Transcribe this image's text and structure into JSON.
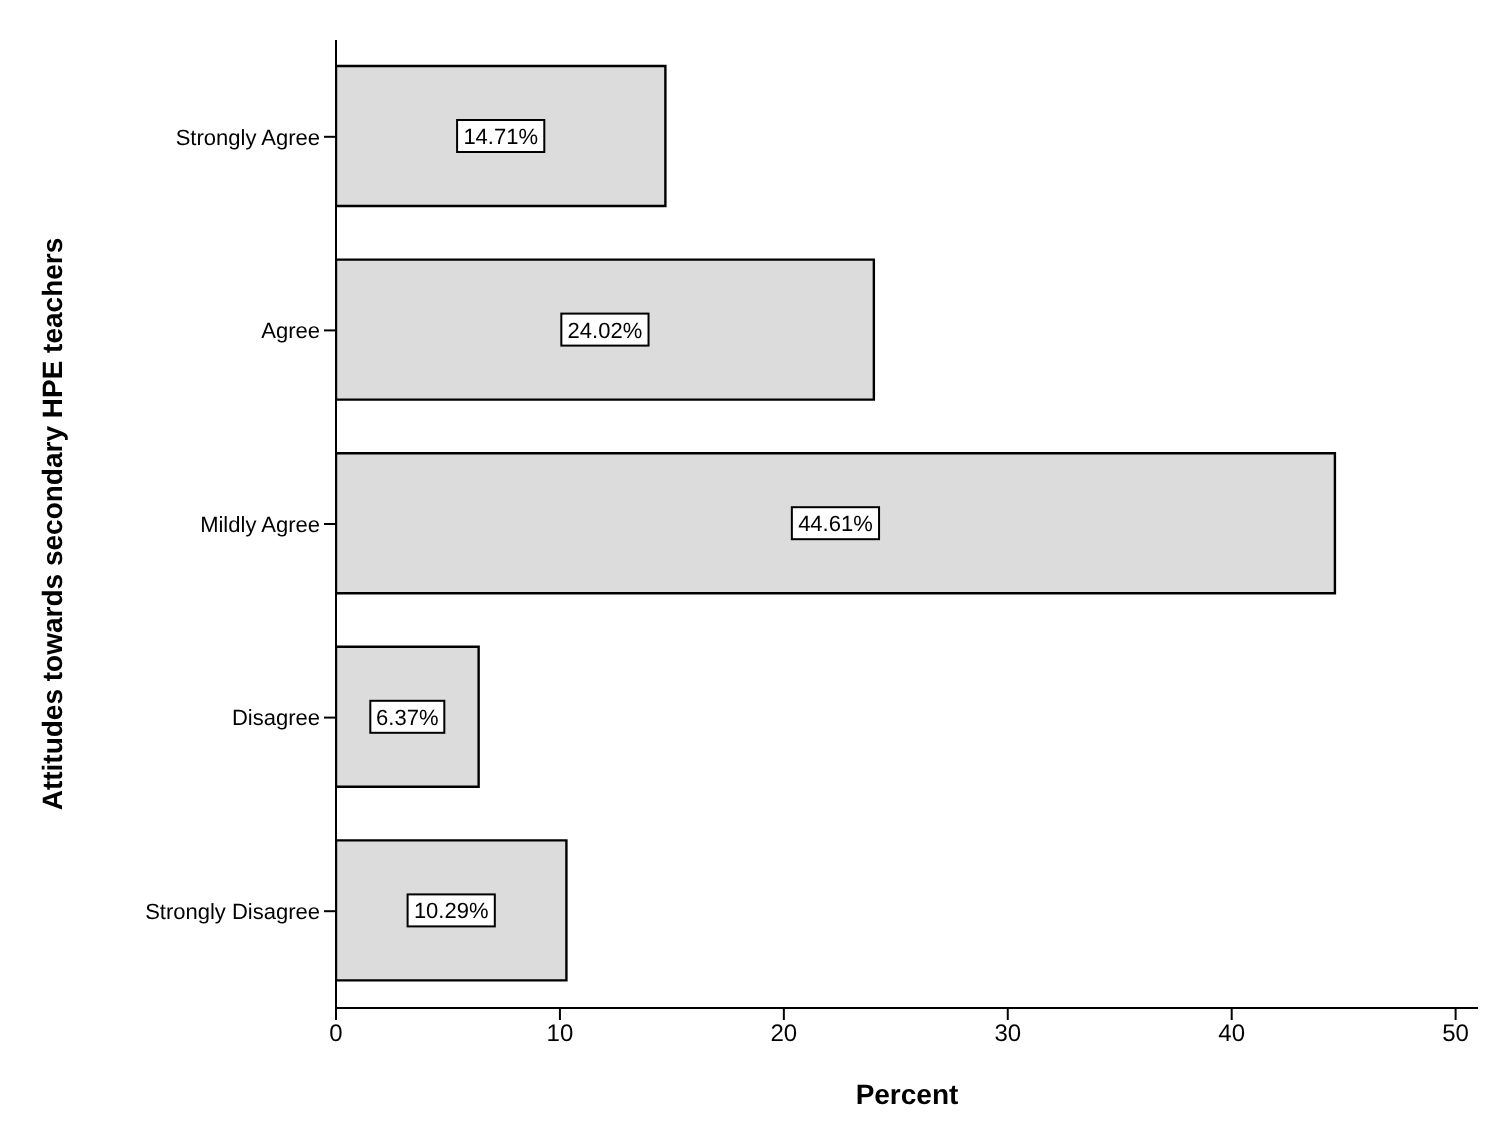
{
  "chart_data": {
    "type": "bar",
    "orientation": "horizontal",
    "xlabel": "Percent",
    "ylabel": "Attitudes towards secondary HPE teachers",
    "categories": [
      "Strongly Agree",
      "Agree",
      "Mildly Agree",
      "Disagree",
      "Strongly Disagree"
    ],
    "values": [
      14.71,
      24.02,
      44.61,
      6.37,
      10.29
    ],
    "value_labels": [
      "14.71%",
      "24.02%",
      "44.61%",
      "6.37%",
      "10.29%"
    ],
    "color": "#dcdcdc",
    "xlim": [
      0,
      51
    ],
    "xticks": [
      0,
      10,
      20,
      30,
      40,
      50
    ],
    "grid": false
  }
}
